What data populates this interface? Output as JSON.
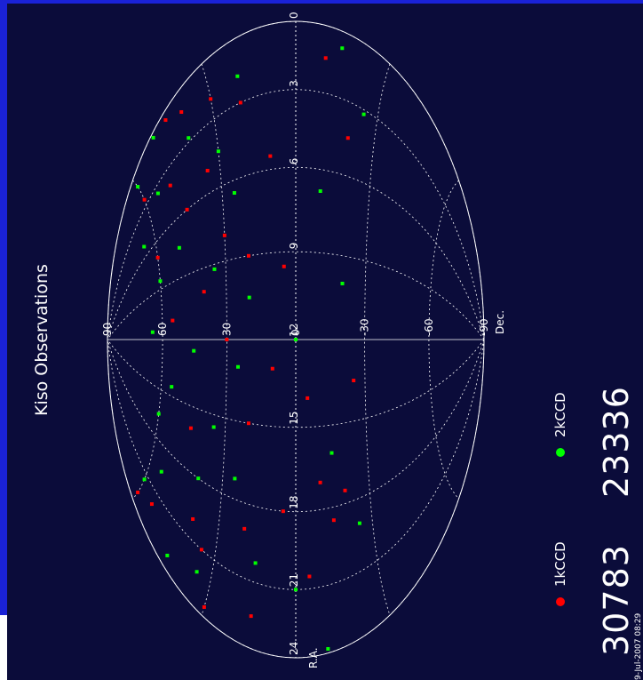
{
  "title": "Kiso Observations",
  "datestamp": "9-Jul-2007 08:29",
  "legend": [
    {
      "label": "1kCCD",
      "color": "#ff0000",
      "count": "30783"
    },
    {
      "label": "2kCCD",
      "color": "#00ff00",
      "count": "23336"
    }
  ],
  "colors": {
    "background": "#0b0c3a",
    "grid": "#ffffff",
    "sidebar": "#1a22d6"
  },
  "chart_data": {
    "type": "scatter",
    "projection": "aitoff-hammer",
    "title": "Kiso Observations",
    "xlabel": "R.A.",
    "ylabel": "Dec.",
    "ra_ticks": [
      "24",
      "21",
      "18",
      "15",
      "12",
      "9",
      "6",
      "3",
      "0"
    ],
    "ra_tick_values": [
      24,
      21,
      18,
      15,
      12,
      9,
      6,
      3,
      0
    ],
    "dec_ticks": [
      "90",
      "60",
      "30",
      "0",
      "-30",
      "-60",
      "-90"
    ],
    "dec_tick_values": [
      90,
      60,
      30,
      0,
      -30,
      -60,
      -90
    ],
    "series": [
      {
        "name": "1kCCD",
        "count": 30783,
        "color": "#ff0000",
        "points": [
          [
            0.5,
            45
          ],
          [
            1.2,
            40
          ],
          [
            2.0,
            30
          ],
          [
            2.5,
            60
          ],
          [
            3.0,
            20
          ],
          [
            4.0,
            50
          ],
          [
            5.0,
            35
          ],
          [
            5.5,
            10
          ],
          [
            6.0,
            45
          ],
          [
            7.0,
            60
          ],
          [
            8.0,
            30
          ],
          [
            9.0,
            20
          ],
          [
            10.0,
            40
          ],
          [
            11.0,
            55
          ],
          [
            12.0,
            30
          ],
          [
            13.0,
            10
          ],
          [
            14.0,
            -5
          ],
          [
            15.0,
            20
          ],
          [
            16.0,
            45
          ],
          [
            17.0,
            -10
          ],
          [
            17.5,
            -20
          ],
          [
            18.0,
            5
          ],
          [
            18.5,
            -15
          ],
          [
            19.0,
            20
          ],
          [
            20.0,
            40
          ],
          [
            21.0,
            35
          ],
          [
            22.0,
            55
          ],
          [
            23.0,
            60
          ],
          [
            23.5,
            30
          ],
          [
            1.5,
            -10
          ],
          [
            4.5,
            -20
          ],
          [
            9.5,
            5
          ],
          [
            13.5,
            -25
          ],
          [
            20.5,
            -5
          ],
          [
            22.5,
            15
          ]
        ]
      },
      {
        "name": "2kCCD",
        "count": 23336,
        "color": "#00ff00",
        "points": [
          [
            0.3,
            50
          ],
          [
            1.0,
            60
          ],
          [
            1.8,
            20
          ],
          [
            2.8,
            40
          ],
          [
            3.5,
            55
          ],
          [
            4.5,
            30
          ],
          [
            5.2,
            65
          ],
          [
            6.5,
            25
          ],
          [
            7.5,
            50
          ],
          [
            8.5,
            60
          ],
          [
            9.2,
            35
          ],
          [
            10.5,
            20
          ],
          [
            11.5,
            65
          ],
          [
            12.5,
            45
          ],
          [
            13.0,
            25
          ],
          [
            14.5,
            55
          ],
          [
            15.5,
            35
          ],
          [
            16.5,
            60
          ],
          [
            17.2,
            25
          ],
          [
            18.0,
            40
          ],
          [
            19.5,
            55
          ],
          [
            20.2,
            15
          ],
          [
            21.5,
            60
          ],
          [
            22.2,
            35
          ],
          [
            23.2,
            45
          ],
          [
            0.8,
            -15
          ],
          [
            3.2,
            -25
          ],
          [
            6.8,
            -10
          ],
          [
            10.0,
            -20
          ],
          [
            12.0,
            0
          ],
          [
            16.0,
            -15
          ],
          [
            19.0,
            -25
          ],
          [
            21.0,
            0
          ],
          [
            23.8,
            -10
          ]
        ]
      }
    ],
    "grid": true,
    "legend_position": "bottom"
  }
}
